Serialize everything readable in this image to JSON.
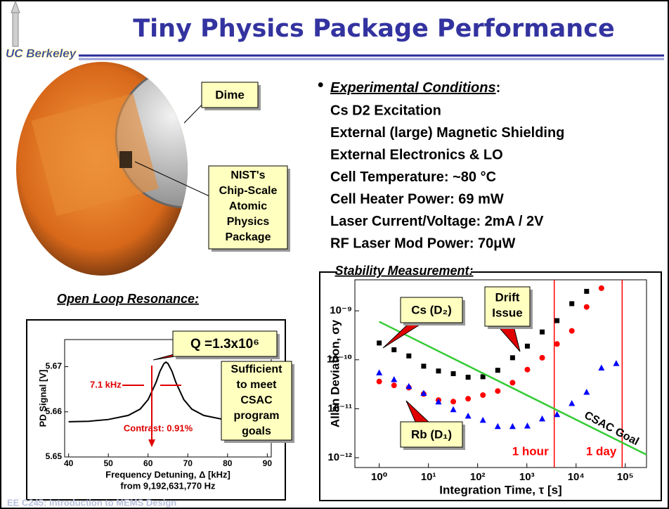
{
  "header": {
    "title": "Tiny Physics Package Performance",
    "logo": "UC Berkeley"
  },
  "photo": {
    "dime_label": "Dime",
    "package_label": [
      "NIST's",
      "Chip-Scale",
      "Atomic",
      "Physics",
      "Package"
    ]
  },
  "conditions": {
    "heading": "Experimental Conditions",
    "colon": ":",
    "items": [
      "Cs D2 Excitation",
      "External (large) Magnetic Shielding",
      "External Electronics & LO",
      "Cell Temperature: ~80 °C",
      "Cell Heater Power: 69 mW",
      "Laser Current/Voltage: 2mA / 2V",
      "RF Laser Mod Power: 70μW"
    ]
  },
  "footer": "EE C245: Introduction to MEMS Design",
  "chart_data": [
    {
      "type": "line",
      "title": "Open Loop Resonance:",
      "xlabel": "Frequency Detuning, Δ [kHz]",
      "xlabel2": "from 9,192,631,770 Hz",
      "ylabel": "PD Signal [V]",
      "x": [
        40,
        45,
        50,
        55,
        58,
        60,
        62,
        63,
        64,
        64.5,
        65,
        66,
        67,
        69,
        71,
        74,
        79,
        84,
        90
      ],
      "series": [
        {
          "color": "#000000",
          "values": [
            5.6578,
            5.6579,
            5.6583,
            5.6592,
            5.6606,
            5.6627,
            5.6665,
            5.669,
            5.6707,
            5.671,
            5.6707,
            5.669,
            5.6665,
            5.6627,
            5.6606,
            5.6592,
            5.6583,
            5.6579,
            5.6578
          ]
        }
      ],
      "xlim": [
        39,
        91
      ],
      "xticks": [
        40,
        50,
        60,
        70,
        80,
        90
      ],
      "ylim": [
        5.65,
        5.676
      ],
      "yticks": [
        5.65,
        5.66,
        5.67
      ],
      "annotations": {
        "width": "7.1 kHz",
        "contrast": "Contrast: 0.91%",
        "q": "Q =1.3x10⁶",
        "note": [
          "Sufficient",
          "to meet",
          "CSAC",
          "program",
          "goals"
        ]
      }
    },
    {
      "type": "scatter",
      "title": "Stability Measurement:",
      "xlabel": "Integration Time, τ [s]",
      "ylabel": "Allan Deviation, σy",
      "xlog": true,
      "ylog": true,
      "xlim": [
        0.32,
        270000
      ],
      "ylim": [
        6.3e-13,
        4.3e-09
      ],
      "xticks": [
        {
          "value": 1,
          "label": "10⁰"
        },
        {
          "value": 10,
          "label": "10¹"
        },
        {
          "value": 100,
          "label": "10²"
        },
        {
          "value": 1000,
          "label": "10³"
        },
        {
          "value": 10000,
          "label": "10⁴"
        },
        {
          "value": 100000,
          "label": "10⁵"
        }
      ],
      "yticks": [
        {
          "value": 1e-12,
          "label": "10⁻¹²"
        },
        {
          "value": 1e-11,
          "label": "10⁻¹¹"
        },
        {
          "value": 1e-10,
          "label": "10⁻¹⁰"
        },
        {
          "value": 1e-09,
          "label": "10⁻⁹"
        }
      ],
      "series": [
        {
          "name": "Cs (D₂)",
          "color": "#000000",
          "marker": "square",
          "x": [
            1,
            2,
            4,
            8,
            16,
            32,
            64,
            128,
            256,
            512,
            1024,
            2048,
            4096,
            8192,
            16384
          ],
          "values": [
            2.2e-10,
            1.6e-10,
            1.2e-10,
            7.4e-11,
            5.9e-11,
            5.2e-11,
            4.4e-11,
            4.5e-11,
            6.1e-11,
            1.1e-10,
            1.9e-10,
            3.7e-10,
            6.3e-10,
            1.4e-09,
            2.5e-09
          ]
        },
        {
          "name": "Rb (D₁)",
          "color": "#ff0000",
          "marker": "circle",
          "x": [
            1,
            2,
            4,
            8,
            16,
            32,
            64,
            128,
            256,
            512,
            1024,
            2048,
            4096,
            8192,
            16384,
            32768
          ],
          "values": [
            3.6e-11,
            3e-11,
            2.7e-11,
            2e-11,
            1.5e-11,
            1.4e-11,
            1.6e-11,
            1.9e-11,
            2.3e-11,
            3.4e-11,
            6.3e-11,
            1.1e-10,
            2.1e-10,
            3.9e-10,
            1.2e-09,
            2.9e-09
          ]
        },
        {
          "color": "#0000ff",
          "marker": "triangle",
          "x": [
            1,
            2,
            4,
            8,
            16,
            32,
            64,
            128,
            256,
            512,
            1024,
            2048,
            4096,
            8192,
            16384,
            32768,
            65536
          ],
          "values": [
            5.5e-11,
            4e-11,
            2.9e-11,
            2.1e-11,
            1.4e-11,
            9.7e-12,
            7.2e-12,
            5.9e-12,
            4.4e-12,
            4.4e-12,
            4.5e-12,
            6.3e-12,
            7.7e-12,
            1.3e-11,
            2.2e-11,
            6.9e-11,
            8.5e-11
          ]
        },
        {
          "name": "CSAC Goal",
          "color": "#33cc33",
          "marker": "line",
          "x": [
            1,
            270000
          ],
          "values": [
            6e-10,
            1.15e-12
          ]
        }
      ],
      "vlines": [
        {
          "value": 3600,
          "label": "1 hour"
        },
        {
          "value": 86400,
          "label": "1 day"
        }
      ],
      "vline_color": "#ff0000",
      "annotations": {
        "drift": [
          "Drift",
          "Issue"
        ]
      }
    }
  ]
}
